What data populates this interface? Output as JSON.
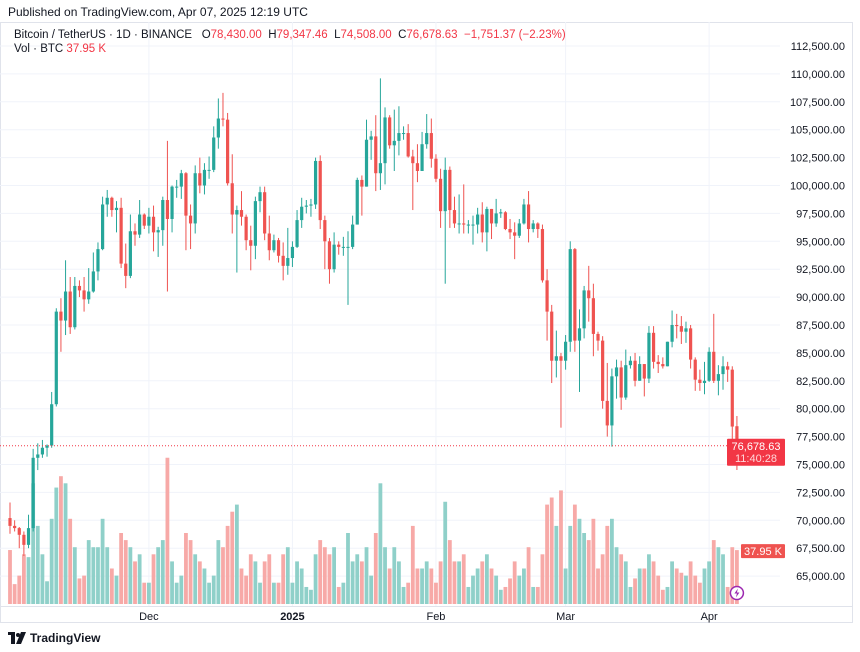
{
  "published": "Published on TradingView.com, Apr 07, 2025 12:19 UTC",
  "legend": {
    "symbol": "Bitcoin / TetherUS · 1D · BINANCE",
    "o_label": "O",
    "o": "78,430.00",
    "h_label": "H",
    "h": "79,347.46",
    "l_label": "L",
    "l": "74,508.00",
    "c_label": "C",
    "c": "76,678.63",
    "change": "−1,751.37 (−2.23%)",
    "vol_label": "Vol · BTC",
    "vol": "37.95 K"
  },
  "footer": {
    "brand": "TradingView",
    "logo_icon": "tradingview-logo-icon"
  },
  "colors": {
    "up": "#26a69a",
    "down": "#ef5350",
    "price_tag": "#f23645",
    "up_volume": "#8fd0c9",
    "down_volume": "#f7a9a7",
    "event_icon": "#9c27b0"
  },
  "chart_data": {
    "type": "candlestick",
    "title": "Bitcoin / TetherUS · 1D · BINANCE",
    "price_unit": "USDT",
    "volume_unit": "K BTC",
    "ylim": [
      63000,
      114000
    ],
    "y_ticks": [
      "112,500.00",
      "110,000.00",
      "107,500.00",
      "105,000.00",
      "102,500.00",
      "100,000.00",
      "97,500.00",
      "95,000.00",
      "92,500.00",
      "90,000.00",
      "87,500.00",
      "85,000.00",
      "82,500.00",
      "80,000.00",
      "77,500.00",
      "75,000.00",
      "72,500.00",
      "70,000.00",
      "67,500.00",
      "65,000.00"
    ],
    "y_tick_values": [
      112500,
      110000,
      107500,
      105000,
      102500,
      100000,
      97500,
      95000,
      92500,
      90000,
      87500,
      85000,
      82500,
      80000,
      77500,
      75000,
      72500,
      70000,
      67500,
      65000
    ],
    "x_ticks": [
      {
        "label": "Dec",
        "index": 30
      },
      {
        "label": "2025",
        "index": 61,
        "bold": true
      },
      {
        "label": "Feb",
        "index": 92
      },
      {
        "label": "Mar",
        "index": 120
      },
      {
        "label": "Apr",
        "index": 151
      }
    ],
    "grid": true,
    "last_price_label": "76,678.63",
    "countdown_label": "11:40:28",
    "last_price": 76678.63,
    "volume_label": "37.95 K",
    "candle_fields": [
      "open_k",
      "high_k",
      "low_k",
      "close_k",
      "volume_k"
    ],
    "candles": [
      [
        70.2,
        71.6,
        68.8,
        69.5,
        38
      ],
      [
        69.5,
        70.0,
        69.0,
        69.3,
        14
      ],
      [
        69.3,
        69.4,
        67.5,
        68.7,
        20
      ],
      [
        68.7,
        69.0,
        66.8,
        67.8,
        35
      ],
      [
        67.8,
        70.5,
        67.5,
        69.3,
        33
      ],
      [
        69.3,
        76.4,
        69.0,
        75.6,
        85
      ],
      [
        75.6,
        76.9,
        74.5,
        75.9,
        55
      ],
      [
        75.9,
        77.2,
        75.6,
        76.5,
        35
      ],
      [
        76.5,
        76.8,
        75.7,
        76.7,
        16
      ],
      [
        76.7,
        81.5,
        76.5,
        80.4,
        60
      ],
      [
        80.4,
        89.0,
        80.2,
        88.7,
        82
      ],
      [
        88.7,
        89.9,
        85.1,
        87.9,
        90
      ],
      [
        87.9,
        93.3,
        86.6,
        90.5,
        85
      ],
      [
        90.5,
        91.8,
        86.7,
        87.3,
        60
      ],
      [
        87.3,
        91.8,
        87.1,
        91.0,
        40
      ],
      [
        91.0,
        91.5,
        90.0,
        90.6,
        18
      ],
      [
        90.6,
        91.8,
        88.7,
        89.8,
        20
      ],
      [
        89.8,
        92.6,
        89.4,
        90.5,
        45
      ],
      [
        90.5,
        94.0,
        90.4,
        92.3,
        40
      ],
      [
        92.3,
        94.9,
        91.5,
        94.3,
        40
      ],
      [
        94.3,
        99.0,
        94.2,
        98.3,
        60
      ],
      [
        98.3,
        99.6,
        97.2,
        98.9,
        40
      ],
      [
        98.9,
        99.0,
        97.2,
        97.8,
        25
      ],
      [
        97.8,
        98.6,
        95.8,
        98.0,
        20
      ],
      [
        98.0,
        98.9,
        92.6,
        93.0,
        50
      ],
      [
        93.0,
        94.8,
        90.8,
        91.9,
        45
      ],
      [
        91.9,
        97.4,
        91.7,
        95.9,
        40
      ],
      [
        95.9,
        96.6,
        94.6,
        95.6,
        30
      ],
      [
        95.6,
        98.7,
        95.3,
        97.4,
        35
      ],
      [
        97.4,
        97.5,
        96.1,
        96.4,
        15
      ],
      [
        96.4,
        98.0,
        95.7,
        97.2,
        15
      ],
      [
        97.2,
        98.2,
        94.1,
        95.8,
        35
      ],
      [
        95.8,
        96.3,
        93.6,
        96.0,
        40
      ],
      [
        96.0,
        99.0,
        94.6,
        98.7,
        45
      ],
      [
        98.7,
        104.0,
        90.5,
        97.0,
        103
      ],
      [
        97.0,
        100.0,
        95.8,
        99.9,
        30
      ],
      [
        99.9,
        100.5,
        98.9,
        99.9,
        15
      ],
      [
        99.9,
        101.4,
        98.8,
        101.1,
        20
      ],
      [
        101.1,
        101.2,
        94.2,
        97.3,
        50
      ],
      [
        97.3,
        98.3,
        94.3,
        96.6,
        45
      ],
      [
        96.6,
        101.8,
        95.7,
        101.1,
        35
      ],
      [
        101.1,
        102.5,
        99.3,
        100.0,
        30
      ],
      [
        100.0,
        102.0,
        99.2,
        101.4,
        25
      ],
      [
        101.4,
        102.6,
        100.6,
        101.4,
        15
      ],
      [
        101.4,
        105.3,
        101.2,
        104.3,
        20
      ],
      [
        104.3,
        107.8,
        103.3,
        106.0,
        45
      ],
      [
        106.0,
        108.3,
        105.3,
        105.9,
        40
      ],
      [
        105.9,
        106.5,
        100.0,
        100.2,
        55
      ],
      [
        100.2,
        102.8,
        95.7,
        97.4,
        65
      ],
      [
        97.4,
        98.2,
        92.2,
        97.8,
        70
      ],
      [
        97.8,
        99.5,
        96.4,
        97.2,
        25
      ],
      [
        97.2,
        97.4,
        94.2,
        95.1,
        20
      ],
      [
        95.1,
        96.4,
        92.4,
        94.6,
        35
      ],
      [
        94.6,
        99.0,
        93.4,
        98.6,
        30
      ],
      [
        98.6,
        99.9,
        97.6,
        99.4,
        15
      ],
      [
        99.4,
        99.9,
        95.1,
        95.7,
        30
      ],
      [
        95.7,
        97.3,
        93.3,
        94.2,
        35
      ],
      [
        94.2,
        95.6,
        94.0,
        95.1,
        15
      ],
      [
        95.1,
        95.3,
        93.1,
        93.7,
        15
      ],
      [
        93.7,
        94.9,
        91.5,
        92.8,
        35
      ],
      [
        92.8,
        96.2,
        92.0,
        93.5,
        40
      ],
      [
        93.5,
        95.0,
        92.7,
        94.5,
        15
      ],
      [
        94.5,
        97.8,
        94.4,
        96.9,
        30
      ],
      [
        96.9,
        98.9,
        96.2,
        98.1,
        25
      ],
      [
        98.1,
        98.7,
        97.5,
        98.2,
        12
      ],
      [
        98.2,
        98.8,
        97.2,
        98.3,
        10
      ],
      [
        98.3,
        102.5,
        97.9,
        102.2,
        35
      ],
      [
        102.2,
        102.7,
        96.1,
        96.9,
        45
      ],
      [
        96.9,
        97.3,
        92.5,
        95.0,
        40
      ],
      [
        95.0,
        95.3,
        91.2,
        92.5,
        35
      ],
      [
        92.5,
        95.8,
        92.2,
        94.7,
        40
      ],
      [
        94.7,
        95.0,
        93.8,
        94.5,
        12
      ],
      [
        94.5,
        95.4,
        93.7,
        94.5,
        15
      ],
      [
        94.5,
        95.9,
        89.3,
        94.5,
        50
      ],
      [
        94.5,
        97.3,
        94.3,
        96.5,
        30
      ],
      [
        96.5,
        100.7,
        96.5,
        100.5,
        35
      ],
      [
        100.5,
        100.9,
        97.3,
        99.9,
        30
      ],
      [
        99.9,
        105.9,
        99.9,
        104.1,
        40
      ],
      [
        104.1,
        104.9,
        102.3,
        104.4,
        20
      ],
      [
        104.4,
        106.3,
        99.5,
        101.1,
        50
      ],
      [
        101.1,
        109.6,
        99.6,
        102.0,
        85
      ],
      [
        102.0,
        107.0,
        100.1,
        106.1,
        40
      ],
      [
        106.1,
        106.3,
        103.3,
        103.6,
        25
      ],
      [
        103.6,
        106.8,
        101.3,
        104.0,
        40
      ],
      [
        104.0,
        107.1,
        102.7,
        104.7,
        30
      ],
      [
        104.7,
        105.3,
        104.1,
        104.7,
        12
      ],
      [
        104.7,
        105.5,
        102.5,
        102.6,
        15
      ],
      [
        102.6,
        103.2,
        97.8,
        102.0,
        55
      ],
      [
        102.0,
        103.7,
        100.3,
        101.3,
        25
      ],
      [
        101.3,
        104.8,
        101.3,
        103.7,
        25
      ],
      [
        103.7,
        106.4,
        103.3,
        104.7,
        30
      ],
      [
        104.7,
        106.0,
        101.6,
        102.4,
        25
      ],
      [
        102.4,
        102.8,
        100.3,
        100.6,
        15
      ],
      [
        100.6,
        101.5,
        96.2,
        97.7,
        30
      ],
      [
        97.7,
        102.5,
        91.2,
        101.4,
        72
      ],
      [
        101.4,
        101.7,
        96.2,
        97.8,
        45
      ],
      [
        97.8,
        99.0,
        96.2,
        96.6,
        30
      ],
      [
        96.6,
        99.2,
        95.7,
        96.6,
        30
      ],
      [
        96.6,
        100.1,
        95.7,
        96.5,
        35
      ],
      [
        96.5,
        96.9,
        95.7,
        96.5,
        12
      ],
      [
        96.5,
        97.3,
        94.7,
        96.5,
        20
      ],
      [
        96.5,
        98.0,
        95.7,
        97.4,
        25
      ],
      [
        97.4,
        98.5,
        94.9,
        95.8,
        30
      ],
      [
        95.8,
        98.1,
        94.1,
        97.9,
        35
      ],
      [
        97.9,
        97.9,
        95.2,
        96.6,
        25
      ],
      [
        96.6,
        98.8,
        96.3,
        97.5,
        20
      ],
      [
        97.5,
        97.9,
        97.1,
        97.6,
        10
      ],
      [
        97.6,
        97.7,
        96.0,
        96.1,
        12
      ],
      [
        96.1,
        97.0,
        95.2,
        95.8,
        18
      ],
      [
        95.8,
        96.7,
        93.4,
        95.5,
        30
      ],
      [
        95.5,
        97.0,
        95.3,
        96.6,
        20
      ],
      [
        96.6,
        98.8,
        96.5,
        98.3,
        25
      ],
      [
        98.3,
        99.5,
        94.9,
        96.1,
        40
      ],
      [
        96.1,
        96.9,
        95.8,
        96.6,
        12
      ],
      [
        96.6,
        96.7,
        95.3,
        96.1,
        12
      ],
      [
        96.1,
        96.5,
        91.3,
        91.5,
        35
      ],
      [
        91.5,
        92.5,
        86.1,
        88.7,
        70
      ],
      [
        88.7,
        89.3,
        82.3,
        84.3,
        75
      ],
      [
        84.3,
        87.0,
        82.8,
        84.7,
        55
      ],
      [
        84.7,
        85.0,
        78.3,
        84.3,
        80
      ],
      [
        84.3,
        86.6,
        83.5,
        86.0,
        25
      ],
      [
        86.0,
        95.0,
        85.1,
        94.3,
        55
      ],
      [
        94.3,
        94.4,
        85.1,
        86.1,
        70
      ],
      [
        86.1,
        88.9,
        81.5,
        87.2,
        60
      ],
      [
        87.2,
        91.0,
        86.3,
        90.6,
        50
      ],
      [
        90.6,
        92.8,
        87.8,
        89.9,
        45
      ],
      [
        89.9,
        91.2,
        84.7,
        86.7,
        60
      ],
      [
        86.7,
        86.9,
        85.2,
        86.1,
        25
      ],
      [
        86.1,
        86.5,
        80.0,
        80.7,
        35
      ],
      [
        80.7,
        84.1,
        77.5,
        78.5,
        55
      ],
      [
        78.5,
        83.6,
        76.6,
        82.9,
        60
      ],
      [
        82.9,
        84.4,
        80.9,
        83.7,
        40
      ],
      [
        83.7,
        84.3,
        79.9,
        81.0,
        35
      ],
      [
        81.0,
        85.3,
        80.8,
        83.9,
        30
      ],
      [
        83.9,
        84.7,
        83.6,
        84.3,
        12
      ],
      [
        84.3,
        85.0,
        82.0,
        82.5,
        18
      ],
      [
        82.5,
        84.7,
        82.5,
        84.0,
        25
      ],
      [
        84.0,
        84.0,
        81.1,
        82.7,
        25
      ],
      [
        82.7,
        87.4,
        82.3,
        86.8,
        35
      ],
      [
        86.8,
        87.4,
        83.6,
        84.2,
        30
      ],
      [
        84.2,
        84.8,
        83.2,
        84.0,
        20
      ],
      [
        84.0,
        84.6,
        83.6,
        83.8,
        10
      ],
      [
        83.8,
        86.0,
        83.8,
        86.0,
        12
      ],
      [
        86.0,
        88.8,
        85.5,
        87.5,
        30
      ],
      [
        87.5,
        88.5,
        86.3,
        87.4,
        25
      ],
      [
        87.4,
        88.3,
        85.8,
        86.9,
        22
      ],
      [
        86.9,
        87.8,
        85.9,
        87.2,
        20
      ],
      [
        87.2,
        87.5,
        83.6,
        84.4,
        30
      ],
      [
        84.4,
        84.6,
        81.6,
        82.6,
        20
      ],
      [
        82.6,
        83.5,
        81.6,
        82.3,
        15
      ],
      [
        82.3,
        84.2,
        81.3,
        82.5,
        25
      ],
      [
        82.5,
        85.5,
        82.4,
        85.1,
        30
      ],
      [
        85.1,
        88.5,
        82.3,
        82.5,
        45
      ],
      [
        82.5,
        83.9,
        81.2,
        83.1,
        40
      ],
      [
        83.1,
        84.7,
        81.7,
        83.8,
        35
      ],
      [
        83.8,
        84.2,
        82.4,
        83.5,
        12
      ],
      [
        83.5,
        83.8,
        77.2,
        78.4,
        40
      ],
      [
        78.43,
        79.347,
        74.508,
        76.679,
        37.95
      ]
    ]
  }
}
